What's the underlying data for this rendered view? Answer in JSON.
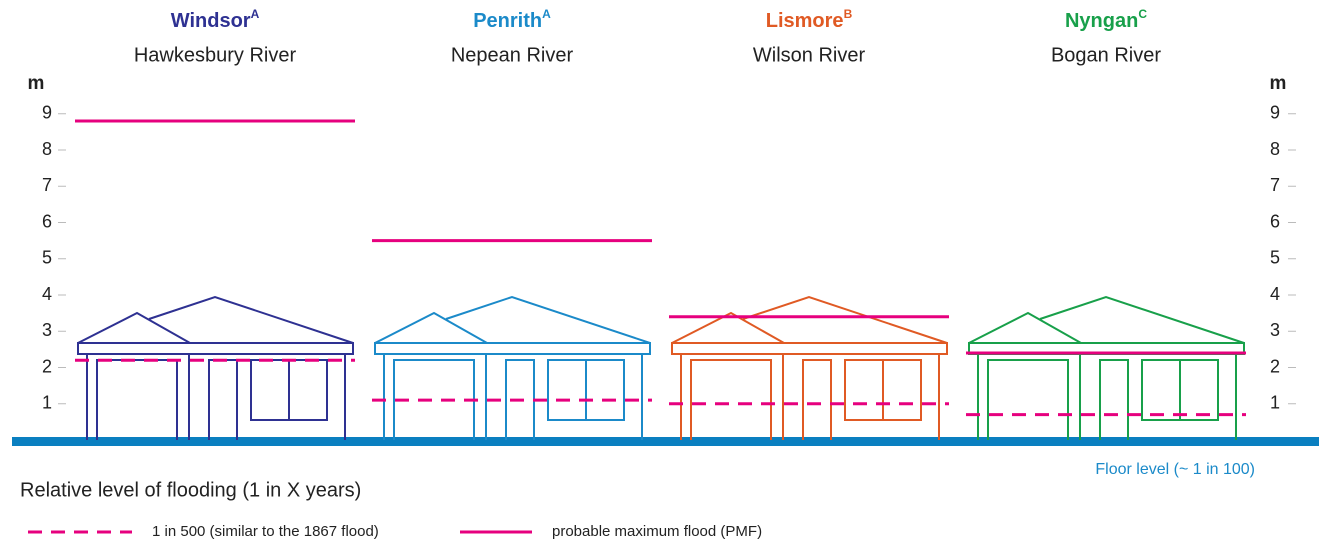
{
  "chart_data": {
    "type": "flood",
    "categories": [
      "Windsor",
      "Penrith",
      "Lismore",
      "Nyngan"
    ],
    "superscripts": [
      "A",
      "A",
      "B",
      "C"
    ],
    "rivers": [
      "Hawkesbury River",
      "Nepean River",
      "Wilson River",
      "Bogan River"
    ],
    "category_colors": [
      "#2e3192",
      "#1b8ac9",
      "#e05a24",
      "#18a04a"
    ],
    "y_label": "m",
    "ylim": [
      0,
      10
    ],
    "yticks": [
      1,
      2,
      3,
      4,
      5,
      6,
      7,
      8,
      9
    ],
    "legend_title": "Relative level of flooding (1 in X years)",
    "floor_label": "Floor level (~ 1 in 100)",
    "series": [
      {
        "name": "1 in 500 (similar to the 1867 flood)",
        "color": "#e6007e",
        "dashed": true,
        "values": [
          2.2,
          1.1,
          1.0,
          0.7
        ]
      },
      {
        "name": "probable maximum flood (PMF)",
        "color": "#e6007e",
        "dashed": false,
        "values": [
          8.8,
          5.5,
          3.4,
          2.4
        ]
      }
    ]
  }
}
